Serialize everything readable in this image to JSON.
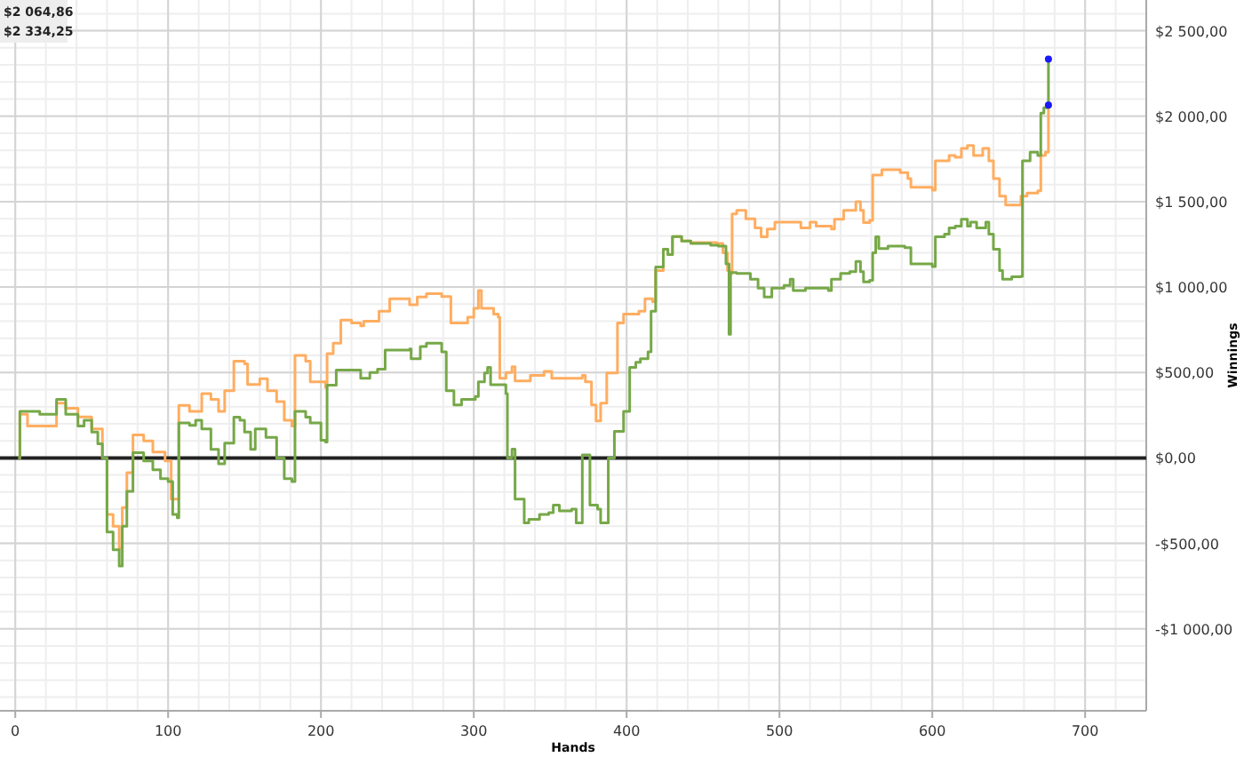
{
  "chart_data": {
    "type": "step",
    "xlabel": "Hands",
    "ylabel": "Winnings",
    "xlim": [
      -10,
      740
    ],
    "ylim": [
      -1480,
      2680
    ],
    "xticks": [
      0,
      100,
      200,
      300,
      400,
      500,
      600,
      700
    ],
    "yticks": [
      {
        "value": -1000,
        "label": "-$1 000,00"
      },
      {
        "value": -500,
        "label": "-$500,00"
      },
      {
        "value": 0,
        "label": "$0,00"
      },
      {
        "value": 500,
        "label": "$500,00"
      },
      {
        "value": 1000,
        "label": "$1 000,00"
      },
      {
        "value": 1500,
        "label": "$1 500,00"
      },
      {
        "value": 2000,
        "label": "$2 000,00"
      },
      {
        "value": 2500,
        "label": "$2 500,00"
      }
    ],
    "grid": true,
    "ref_lines": [
      {
        "axis": "y",
        "value": 0,
        "color": "#222222"
      }
    ],
    "annotations": [
      "$2 064,86",
      "$2 334,25"
    ],
    "series": [
      {
        "color": "#ffad60",
        "x": [
          2,
          3,
          8,
          16,
          27,
          33,
          41,
          50,
          57,
          60,
          64,
          68,
          70,
          73,
          77,
          84,
          90,
          98,
          102,
          106,
          107,
          114,
          122,
          128,
          133,
          137,
          143,
          150,
          152,
          160,
          165,
          171,
          176,
          181,
          183,
          190,
          193,
          203,
          204,
          208,
          213,
          220,
          226,
          228,
          238,
          245,
          252,
          258,
          263,
          269,
          279,
          285,
          296,
          300,
          303,
          305,
          313,
          316,
          317,
          321,
          325,
          327,
          337,
          346,
          351,
          365,
          371,
          373,
          377,
          380,
          383,
          387,
          394,
          398,
          408,
          412,
          417,
          419,
          424,
          427,
          430,
          436,
          442,
          455,
          459,
          463,
          466,
          468,
          469,
          472,
          478,
          484,
          488,
          492,
          497,
          507,
          514,
          520,
          524,
          534,
          536,
          542,
          550,
          553,
          555,
          559,
          561,
          567,
          579,
          584,
          586,
          592,
          600,
          602,
          608,
          611,
          615,
          619,
          623,
          627,
          633,
          637,
          640,
          644,
          648,
          658,
          662,
          669,
          671,
          674,
          676
        ],
        "values": [
          0,
          255,
          186,
          186,
          320,
          290,
          240,
          170,
          0,
          -331,
          -400,
          -528,
          -290,
          -86,
          134,
          100,
          34,
          -17,
          -241,
          -241,
          307,
          272,
          376,
          342,
          272,
          393,
          566,
          550,
          430,
          463,
          393,
          330,
          220,
          186,
          600,
          566,
          445,
          413,
          610,
          672,
          807,
          790,
          773,
          800,
          859,
          931,
          931,
          897,
          942,
          962,
          945,
          790,
          824,
          876,
          980,
          876,
          842,
          824,
          466,
          500,
          534,
          450,
          483,
          507,
          466,
          466,
          483,
          445,
          310,
          217,
          320,
          497,
          790,
          842,
          859,
          931,
          915,
          1097,
          1222,
          1190,
          1296,
          1270,
          1260,
          1260,
          1255,
          1200,
          1097,
          1080,
          1428,
          1449,
          1400,
          1346,
          1294,
          1340,
          1380,
          1380,
          1346,
          1380,
          1356,
          1340,
          1397,
          1449,
          1500,
          1449,
          1377,
          1390,
          1656,
          1687,
          1670,
          1635,
          1584,
          1584,
          1567,
          1739,
          1739,
          1770,
          1760,
          1811,
          1828,
          1770,
          1811,
          1739,
          1635,
          1532,
          1480,
          1532,
          1550,
          1563,
          1770,
          1790,
          2064.86
        ]
      },
      {
        "color": "#76a848",
        "x": [
          2,
          3,
          16,
          27,
          33,
          41,
          45,
          50,
          54,
          57,
          60,
          64,
          68,
          70,
          73,
          77,
          84,
          90,
          95,
          100,
          103,
          106,
          107,
          114,
          118,
          122,
          128,
          133,
          137,
          143,
          147,
          150,
          154,
          157,
          164,
          171,
          176,
          181,
          183,
          190,
          193,
          200,
          203,
          204,
          210,
          217,
          226,
          232,
          237,
          242,
          258,
          259,
          265,
          269,
          274,
          279,
          282,
          287,
          292,
          301,
          303,
          307,
          309,
          311,
          321,
          322,
          325,
          327,
          333,
          336,
          343,
          349,
          352,
          356,
          364,
          367,
          371,
          375,
          376,
          381,
          383,
          388,
          392,
          396,
          398,
          402,
          406,
          409,
          414,
          416,
          419,
          424,
          427,
          430,
          436,
          442,
          455,
          460,
          465,
          467,
          468,
          472,
          476,
          481,
          486,
          490,
          495,
          503,
          507,
          509,
          517,
          520,
          524,
          532,
          534,
          540,
          546,
          550,
          553,
          555,
          559,
          561,
          563,
          565,
          571,
          582,
          586,
          592,
          600,
          602,
          608,
          611,
          615,
          619,
          623,
          625,
          629,
          635,
          637,
          640,
          644,
          646,
          652,
          658,
          659,
          664,
          669,
          671,
          673,
          676
        ],
        "values": [
          0,
          272,
          255,
          342,
          255,
          186,
          220,
          152,
          83,
          0,
          -434,
          -538,
          -632,
          -400,
          -196,
          31,
          -17,
          -69,
          -121,
          -138,
          -331,
          -350,
          205,
          190,
          220,
          170,
          50,
          -34,
          86,
          238,
          220,
          152,
          50,
          170,
          120,
          0,
          -121,
          -138,
          272,
          238,
          205,
          103,
          93,
          426,
          514,
          514,
          466,
          500,
          520,
          631,
          638,
          580,
          652,
          672,
          672,
          621,
          393,
          310,
          342,
          360,
          445,
          497,
          530,
          428,
          376,
          0,
          52,
          -241,
          -380,
          -360,
          -331,
          -320,
          -276,
          -310,
          -300,
          -380,
          17,
          17,
          -276,
          -300,
          -380,
          0,
          155,
          155,
          272,
          530,
          560,
          580,
          621,
          859,
          1118,
          1222,
          1190,
          1296,
          1270,
          1255,
          1245,
          1240,
          1135,
          723,
          1085,
          1080,
          1080,
          1046,
          994,
          942,
          994,
          1010,
          1046,
          980,
          994,
          994,
          994,
          980,
          1046,
          1080,
          1090,
          1150,
          1090,
          1030,
          1040,
          1200,
          1294,
          1225,
          1240,
          1230,
          1135,
          1135,
          1120,
          1294,
          1310,
          1346,
          1356,
          1397,
          1356,
          1380,
          1346,
          1380,
          1310,
          1222,
          1097,
          1046,
          1060,
          1063,
          1739,
          1790,
          1770,
          2018,
          2050,
          2334.25
        ]
      }
    ]
  }
}
